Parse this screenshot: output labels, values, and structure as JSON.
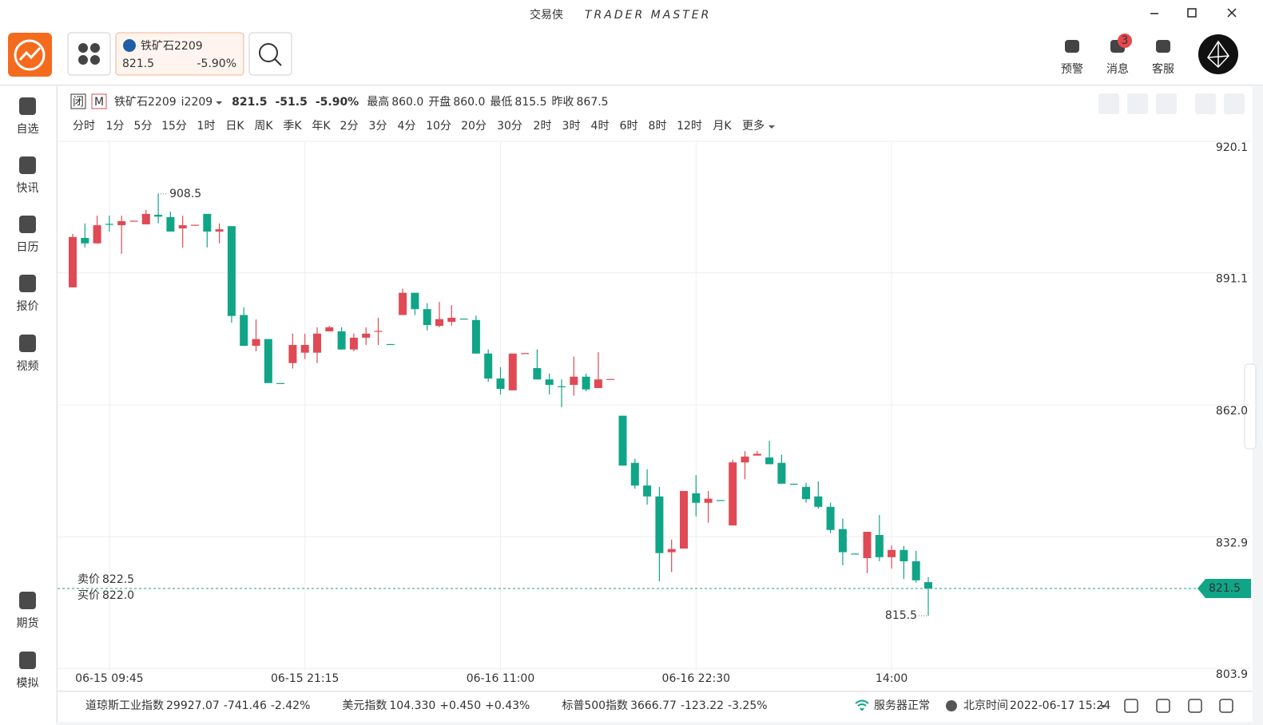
{
  "window": {
    "app_name": "交易侠",
    "app_subtitle": "TRADER MASTER"
  },
  "toolbar": {
    "tab": {
      "name": "铁矿石2209",
      "price": "821.5",
      "change_pct": "-5.90%"
    },
    "actions": [
      "预警",
      "消息",
      "客服"
    ],
    "message_badge": "3"
  },
  "sidebar": {
    "top": [
      "自选",
      "快讯",
      "日历",
      "报价",
      "视频"
    ],
    "bottom": [
      "期货",
      "模拟"
    ]
  },
  "quote_header": {
    "status": "闭",
    "market_tag": "M",
    "name": "铁矿石2209",
    "code": "i2209",
    "price": "821.5",
    "change": "-51.5",
    "change_pct": "-5.90%",
    "stats": [
      {
        "label": "最高",
        "value": "860.0"
      },
      {
        "label": "开盘",
        "value": "860.0"
      },
      {
        "label": "最低",
        "value": "815.5"
      },
      {
        "label": "昨收",
        "value": "867.5"
      }
    ]
  },
  "periods": [
    "分时",
    "1分",
    "5分",
    "15分",
    "1时",
    "日K",
    "周K",
    "季K",
    "年K",
    "2分",
    "3分",
    "4分",
    "10分",
    "20分",
    "30分",
    "2时",
    "3时",
    "4时",
    "6时",
    "8时",
    "12时",
    "月K",
    "更多"
  ],
  "active_period": 3,
  "chart_data": {
    "type": "candlestick",
    "up_color": "#df4a55",
    "down_color": "#10a587",
    "categories": [
      null,
      null,
      null,
      "06-15 09:45",
      null,
      null,
      null,
      null,
      null,
      null,
      null,
      null,
      null,
      null,
      null,
      null,
      null,
      null,
      null,
      "06-15 21:15",
      null,
      null,
      null,
      null,
      null,
      null,
      null,
      null,
      null,
      null,
      null,
      null,
      null,
      null,
      null,
      "06-16 11:00",
      null,
      null,
      null,
      null,
      null,
      null,
      null,
      null,
      null,
      null,
      null,
      null,
      null,
      null,
      null,
      "06-16 22:30",
      null,
      null,
      null,
      null,
      null,
      null,
      null,
      null,
      null,
      null,
      null,
      null,
      null,
      null,
      null,
      "14:00",
      null,
      null,
      null
    ],
    "open": [
      887.9,
      898.8,
      897.6,
      901.9,
      901.6,
      902.5,
      901.8,
      903.9,
      903.4,
      900.9,
      901.6,
      904.1,
      900.2,
      901.4,
      881.8,
      875.0,
      876.5,
      866.8,
      871.2,
      873.5,
      873.5,
      878.2,
      878.2,
      874.2,
      876.8,
      878.2,
      875.4,
      881.8,
      886.7,
      883.1,
      879.4,
      880.3,
      881.0,
      880.7,
      873.3,
      867.8,
      865.2,
      873.3,
      870.1,
      867.6,
      866.1,
      866.4,
      868.2,
      865.7,
      867.6,
      859.6,
      849.2,
      844.2,
      841.8,
      829.5,
      830.3,
      842.5,
      840.4,
      841.0,
      835.4,
      849.3,
      850.8,
      850.4,
      849.2,
      844.6,
      843.9,
      841.8,
      839.5,
      834.6,
      829.2,
      828.2,
      833.3,
      828.4,
      830.0,
      827.5,
      822.9
    ],
    "high": [
      899.7,
      902.0,
      903.7,
      903.7,
      903.7,
      902.6,
      905.0,
      908.5,
      904.6,
      903.7,
      901.7,
      904.1,
      902.0,
      901.4,
      883.5,
      880.8,
      876.5,
      866.8,
      877.7,
      877.7,
      879.1,
      879.4,
      879.1,
      877.7,
      879.1,
      881.2,
      875.4,
      887.6,
      886.7,
      884.4,
      884.7,
      884.0,
      881.0,
      881.7,
      874.2,
      870.3,
      873.3,
      873.4,
      874.2,
      868.9,
      867.6,
      872.6,
      868.9,
      873.6,
      867.7,
      859.6,
      850.1,
      847.8,
      843.9,
      832.3,
      843.0,
      846.5,
      843.0,
      841.0,
      849.9,
      851.8,
      851.8,
      854.1,
      851.0,
      844.6,
      844.8,
      845.1,
      840.4,
      836.9,
      829.2,
      834.0,
      837.7,
      831.0,
      830.9,
      829.8,
      824.0
    ],
    "low": [
      887.9,
      896.7,
      897.6,
      900.2,
      895.3,
      902.5,
      901.8,
      902.0,
      900.2,
      896.7,
      901.6,
      896.7,
      897.6,
      880.1,
      875.0,
      873.8,
      866.8,
      866.7,
      870.0,
      872.1,
      871.2,
      878.2,
      874.2,
      873.8,
      875.2,
      875.2,
      875.3,
      881.8,
      881.8,
      878.4,
      879.1,
      879.4,
      880.9,
      873.3,
      867.1,
      864.3,
      865.2,
      873.3,
      867.6,
      864.3,
      861.5,
      864.0,
      865.0,
      865.7,
      867.6,
      848.6,
      843.5,
      840.0,
      823.1,
      825.1,
      830.3,
      837.4,
      836.0,
      840.9,
      835.4,
      845.6,
      850.8,
      848.9,
      844.6,
      844.5,
      840.4,
      839.1,
      833.7,
      826.6,
      829.1,
      824.9,
      827.5,
      825.9,
      823.6,
      822.8,
      815.5
    ],
    "close": [
      899.0,
      897.6,
      901.6,
      901.7,
      902.5,
      902.6,
      904.1,
      903.5,
      900.2,
      901.6,
      901.7,
      900.2,
      900.7,
      881.6,
      875.0,
      876.5,
      866.8,
      866.7,
      875.2,
      875.2,
      877.7,
      879.1,
      874.2,
      876.8,
      877.7,
      878.3,
      875.3,
      886.7,
      883.1,
      879.6,
      880.9,
      881.2,
      880.9,
      873.3,
      867.8,
      865.5,
      873.3,
      873.4,
      867.6,
      866.4,
      866.0,
      868.2,
      865.4,
      867.6,
      867.7,
      848.6,
      844.2,
      841.8,
      829.3,
      830.2,
      843.0,
      840.4,
      841.3,
      840.9,
      849.3,
      850.6,
      851.2,
      848.9,
      844.6,
      844.5,
      841.2,
      839.5,
      834.4,
      829.5,
      829.1,
      834.0,
      828.4,
      830.0,
      827.5,
      823.3,
      821.5
    ],
    "ylim": [
      803.9,
      920.1
    ],
    "yticks": [
      803.9,
      832.9,
      {
        "value": 862,
        "label": "862.0"
      },
      891.1,
      920.1
    ],
    "grid": true,
    "max_marker": 908.5,
    "min_marker": 815.5,
    "last_price": 821.5,
    "ask": {
      "label": "卖价",
      "value": "822.5"
    },
    "bid": {
      "label": "买价",
      "value": "822.0"
    }
  },
  "footer": {
    "indices": [
      {
        "name": "道琼斯工业指数",
        "value": "29927.07",
        "change": "-741.46",
        "pct": "-2.42%",
        "color": "#10a587"
      },
      {
        "name": "美元指数",
        "value": "104.330",
        "change": "+0.450",
        "pct": "+0.43%",
        "color": "#df4a55"
      },
      {
        "name": "标普500指数",
        "value": "3666.77",
        "change": "-123.22",
        "pct": "-3.25%",
        "color": "#10a587"
      }
    ],
    "server": "服务器正常",
    "time_label": "北京时间",
    "time": "2022-06-17 15:24"
  }
}
